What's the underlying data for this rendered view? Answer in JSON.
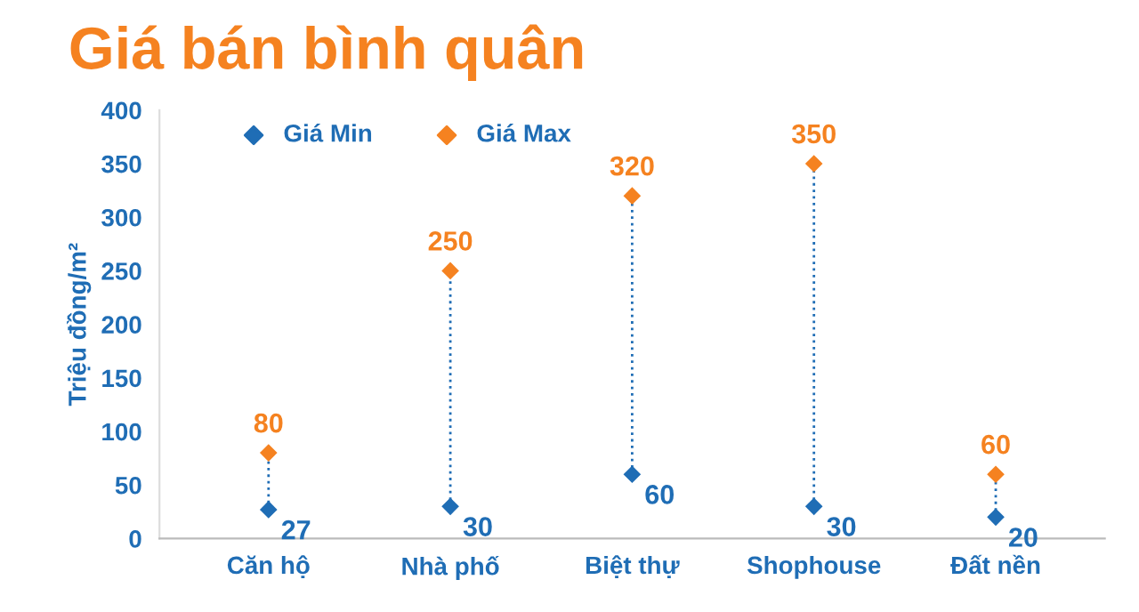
{
  "chart_data": {
    "type": "scatter",
    "title": "Giá bán bình quân",
    "ylabel": "Triệu đồng/m²",
    "categories": [
      "Căn hộ",
      "Nhà phố",
      "Biệt thự",
      "Shophouse",
      "Đất nền"
    ],
    "series": [
      {
        "name": "Giá Min",
        "color": "#1f6db5",
        "values": [
          27,
          30,
          60,
          30,
          20
        ]
      },
      {
        "name": "Giá Max",
        "color": "#f58220",
        "values": [
          80,
          250,
          320,
          350,
          60
        ]
      }
    ],
    "ylim": [
      0,
      400
    ],
    "yticks": [
      0,
      50,
      100,
      150,
      200,
      250,
      300,
      350,
      400
    ],
    "marker": "diamond",
    "line_style": "dotted",
    "data_labels": true,
    "legend": "top left",
    "grid": false
  }
}
